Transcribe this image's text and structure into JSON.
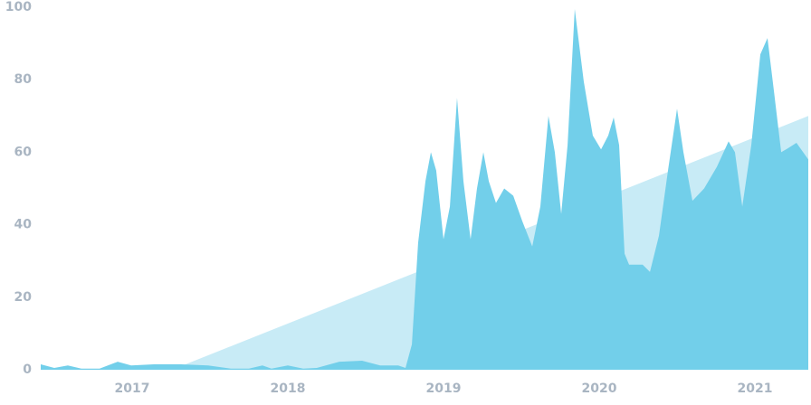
{
  "chart_data": {
    "type": "area",
    "xlim": [
      2016.413,
      2021.343
    ],
    "xticks": [
      2017,
      2018,
      2019,
      2020,
      2021
    ],
    "ylim": [
      0,
      100
    ],
    "yticks": [
      0,
      20,
      40,
      60,
      80,
      100
    ],
    "grid": false,
    "series": [
      {
        "color": "#c8ebf6",
        "x": [
          2016.413,
          2017.256,
          2021.343
        ],
        "values": [
          0,
          0,
          70
        ]
      },
      {
        "color": "#72cfea",
        "x": [
          2016.413,
          2016.5,
          2016.587,
          2016.674,
          2016.791,
          2016.907,
          2016.994,
          2017.14,
          2017.314,
          2017.488,
          2017.634,
          2017.75,
          2017.837,
          2017.895,
          2018.0,
          2018.099,
          2018.186,
          2018.331,
          2018.477,
          2018.593,
          2018.709,
          2018.756,
          2018.797,
          2018.837,
          2018.884,
          2018.919,
          2018.953,
          2019.0,
          2019.041,
          2019.087,
          2019.128,
          2019.174,
          2019.215,
          2019.256,
          2019.291,
          2019.337,
          2019.39,
          2019.448,
          2019.506,
          2019.57,
          2019.622,
          2019.674,
          2019.715,
          2019.756,
          2019.797,
          2019.843,
          2019.901,
          2019.959,
          2020.012,
          2020.058,
          2020.093,
          2020.128,
          2020.163,
          2020.192,
          2020.279,
          2020.326,
          2020.384,
          2020.442,
          2020.5,
          2020.541,
          2020.599,
          2020.674,
          2020.756,
          2020.831,
          2020.872,
          2020.919,
          2020.977,
          2021.035,
          2021.081,
          2021.122,
          2021.169,
          2021.209,
          2021.267,
          2021.343
        ],
        "values": [
          1.5,
          0.5,
          1.2,
          0.3,
          0.3,
          2.2,
          1.2,
          1.5,
          1.5,
          1.2,
          0.3,
          0.3,
          1.2,
          0.3,
          1.2,
          0.3,
          0.5,
          2.2,
          2.5,
          1.2,
          1.2,
          0.5,
          7,
          35,
          52,
          60,
          55,
          36,
          45,
          75,
          52,
          36,
          50,
          60,
          52,
          46,
          50,
          48,
          41,
          34,
          45,
          70,
          60,
          43,
          62,
          99.5,
          79.5,
          64.6,
          60.8,
          64.6,
          69.6,
          62,
          32,
          29,
          29,
          27,
          37,
          55,
          72,
          60,
          46.6,
          50,
          56,
          63,
          60,
          45,
          62,
          87,
          91.5,
          77,
          60,
          61,
          62.6,
          58
        ]
      }
    ]
  }
}
